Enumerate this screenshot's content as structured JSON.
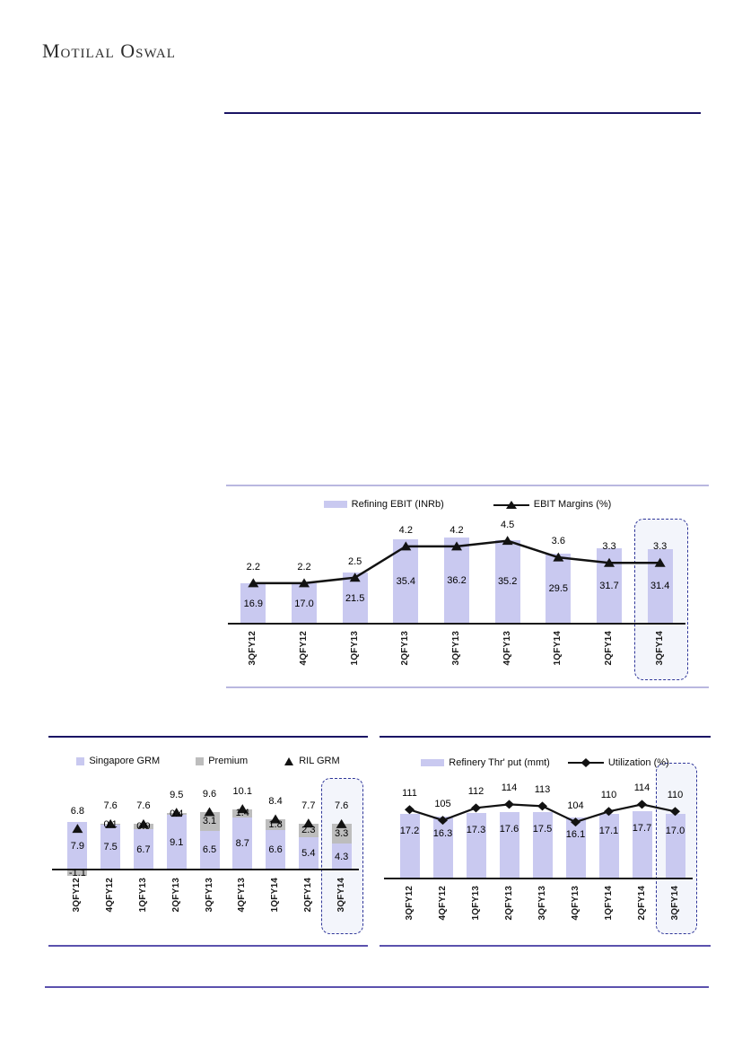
{
  "brand": "Motilal Oswal",
  "colors": {
    "lavender_bar": "#c9c9f0",
    "gray_bar": "#bdbdbd",
    "marker_black": "#121212",
    "navy_rule": "#1a1464",
    "purple_rule": "#5b51ad",
    "lavender_rule": "#b9b7e0",
    "highlight_border": "#2f3699",
    "highlight_fill": "rgba(234,237,247,0.55)"
  },
  "chart_data": [
    {
      "id": "refining-ebit",
      "type": "bar",
      "title": "",
      "categories": [
        "3QFY12",
        "4QFY12",
        "1QFY13",
        "2QFY13",
        "3QFY13",
        "4QFY13",
        "1QFY14",
        "2QFY14",
        "3QFY14"
      ],
      "series": [
        {
          "name": "Refining EBIT (INRb)",
          "role": "bar",
          "values": [
            16.9,
            17.0,
            21.5,
            35.4,
            36.2,
            35.2,
            29.5,
            31.7,
            31.4
          ],
          "labels": [
            "16.9",
            "17.0",
            "21.5",
            "35.4",
            "36.2",
            "35.2",
            "29.5",
            "31.7",
            "31.4"
          ]
        },
        {
          "name": "EBIT Margins (%)",
          "role": "line",
          "marker": "triangle",
          "values": [
            2.2,
            2.2,
            2.5,
            4.2,
            4.2,
            4.5,
            3.6,
            3.3,
            3.3
          ],
          "labels": [
            "2.2",
            "2.2",
            "2.5",
            "4.2",
            "4.2",
            "4.5",
            "3.6",
            "3.3",
            "3.3"
          ]
        }
      ],
      "bar_ylim": [
        0,
        45
      ],
      "line_ylim": [
        0,
        5.8
      ],
      "grid": false,
      "legend_position": "top",
      "highlight_last_category": true
    },
    {
      "id": "grm",
      "type": "bar",
      "title": "",
      "categories": [
        "3QFY12",
        "4QFY12",
        "1QFY13",
        "2QFY13",
        "3QFY13",
        "4QFY13",
        "1QFY14",
        "2QFY14",
        "3QFY14"
      ],
      "series": [
        {
          "name": "Singapore GRM",
          "role": "bar-stack",
          "color_key": "lavender_bar",
          "values": [
            7.9,
            7.5,
            6.7,
            9.1,
            6.5,
            8.7,
            6.6,
            5.4,
            4.3
          ],
          "labels": [
            "7.9",
            "7.5",
            "6.7",
            "9.1",
            "6.5",
            "8.7",
            "6.6",
            "5.4",
            "4.3"
          ]
        },
        {
          "name": "Premium",
          "role": "bar-stack",
          "color_key": "gray_bar",
          "values": [
            -1.1,
            0.1,
            0.9,
            0.4,
            3.1,
            1.4,
            1.8,
            2.3,
            3.3
          ],
          "labels": [
            "-1.1",
            "0.1",
            "0.9",
            "0.4",
            "3.1",
            "1.4",
            "1.8",
            "2.3",
            "3.3"
          ]
        },
        {
          "name": "RIL GRM",
          "role": "markers",
          "marker": "triangle",
          "values": [
            6.8,
            7.6,
            7.6,
            9.5,
            9.6,
            10.1,
            8.4,
            7.7,
            7.6
          ],
          "labels": [
            "6.8",
            "7.6",
            "7.6",
            "9.5",
            "9.6",
            "10.1",
            "8.4",
            "7.7",
            "7.6"
          ]
        }
      ],
      "bar_ylim": [
        -2,
        15
      ],
      "grid": false,
      "legend_position": "top",
      "highlight_last_category": true
    },
    {
      "id": "refinery",
      "type": "bar",
      "title": "",
      "categories": [
        "3QFY12",
        "4QFY12",
        "1QFY13",
        "2QFY13",
        "3QFY13",
        "4QFY13",
        "1QFY14",
        "2QFY14",
        "3QFY14"
      ],
      "series": [
        {
          "name": "Refinery Thr' put  (mmt)",
          "role": "bar",
          "values": [
            17.2,
            16.3,
            17.3,
            17.6,
            17.5,
            16.1,
            17.1,
            17.7,
            17.0
          ],
          "labels": [
            "17.2",
            "16.3",
            "17.3",
            "17.6",
            "17.5",
            "16.1",
            "17.1",
            "17.7",
            "17.0"
          ]
        },
        {
          "name": "Utilization (%)",
          "role": "line",
          "marker": "diamond",
          "values": [
            111,
            105,
            112,
            114,
            113,
            104,
            110,
            114,
            110
          ],
          "labels": [
            "111",
            "105",
            "112",
            "114",
            "113",
            "104",
            "110",
            "114",
            "110"
          ]
        }
      ],
      "bar_ylim": [
        0,
        28
      ],
      "line_ylim": [
        72,
        132
      ],
      "grid": false,
      "legend_position": "top",
      "highlight_last_category": true
    }
  ]
}
